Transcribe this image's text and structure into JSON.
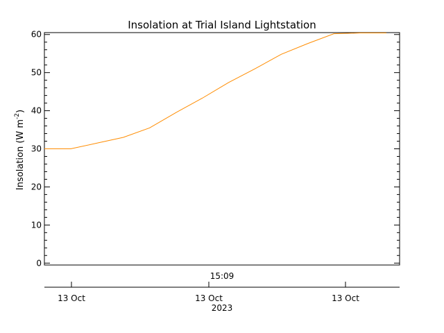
{
  "chart_data": {
    "type": "line",
    "title": "Insolation at Trial Island Lightstation",
    "ylabel": "Insolation (W m",
    "ylabel_exponent": "-2",
    "ylabel_close": ")",
    "ylim": [
      -0.5,
      60.5
    ],
    "yticks": [
      0,
      10,
      20,
      30,
      40,
      50,
      60
    ],
    "time_label": "15:09",
    "x_tick_labels": [
      "13 Oct",
      "13 Oct",
      "13 Oct"
    ],
    "year_label": "2023",
    "grid": false,
    "series": [
      {
        "color": "#ff8c00",
        "x": [
          0,
          1,
          2,
          3,
          4,
          5,
          6,
          7,
          8,
          9,
          10,
          11,
          12,
          13
        ],
        "y": [
          30.0,
          30.0,
          31.5,
          33.0,
          35.5,
          39.5,
          43.3,
          47.4,
          51.0,
          54.8,
          57.6,
          60.2,
          60.4,
          60.4
        ]
      }
    ],
    "x_range": [
      0,
      13.5
    ]
  }
}
